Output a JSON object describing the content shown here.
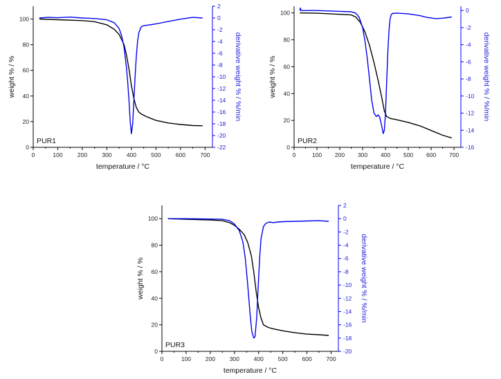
{
  "figure": {
    "colors": {
      "weight": "#000000",
      "derivative": "#0000ee",
      "axis": "#000000",
      "right_axis": "#0000ee"
    }
  },
  "chart_data": [
    {
      "type": "line",
      "panel_label": "PUR1",
      "xlabel": "temperature / °C",
      "ylabel_left": "weight % / %",
      "ylabel_right": "derivative weight % / %/min",
      "xlim": [
        0,
        730
      ],
      "ylim_left": [
        0,
        110
      ],
      "ylim_right": [
        -22,
        2
      ],
      "xticks": [
        0,
        100,
        200,
        300,
        400,
        500,
        600,
        700
      ],
      "yticks_left": [
        0,
        20,
        40,
        60,
        80,
        100
      ],
      "yticks_right": [
        2,
        0,
        -2,
        -4,
        -6,
        -8,
        -10,
        -12,
        -14,
        -16,
        -18,
        -20,
        -22
      ],
      "grid": false,
      "series": [
        {
          "axis": "left",
          "x": [
            25,
            100,
            200,
            250,
            300,
            330,
            350,
            370,
            380,
            390,
            400,
            410,
            420,
            430,
            440,
            460,
            480,
            500,
            550,
            600,
            650,
            690
          ],
          "values": [
            100,
            99.5,
            98.8,
            98,
            95.5,
            92,
            88,
            80,
            72,
            61,
            48,
            38,
            31,
            27.5,
            26,
            24,
            22.5,
            21,
            19,
            17.8,
            17,
            16.8
          ]
        },
        {
          "axis": "right",
          "x": [
            25,
            60,
            100,
            150,
            200,
            250,
            300,
            330,
            350,
            360,
            370,
            380,
            385,
            390,
            395,
            400,
            405,
            410,
            415,
            420,
            425,
            430,
            440,
            450,
            470,
            500,
            550,
            600,
            650,
            690
          ],
          "values": [
            0,
            0.1,
            0.05,
            0.15,
            0,
            -0.1,
            -0.3,
            -0.8,
            -1.8,
            -3,
            -5,
            -8.5,
            -11,
            -14,
            -17.5,
            -19.7,
            -18,
            -14,
            -10,
            -6.5,
            -4,
            -2.5,
            -1.5,
            -1.3,
            -1.2,
            -1,
            -0.6,
            -0.2,
            0.1,
            0
          ]
        }
      ]
    },
    {
      "type": "line",
      "panel_label": "PUR2",
      "xlabel": "temperature / °C",
      "ylabel_left": "weight % / %",
      "ylabel_right": "derivative weight % / %/min",
      "xlim": [
        0,
        730
      ],
      "ylim_left": [
        0,
        105
      ],
      "ylim_right": [
        -16,
        0.5
      ],
      "xticks": [
        0,
        100,
        200,
        300,
        400,
        500,
        600,
        700
      ],
      "yticks_left": [
        0,
        20,
        40,
        60,
        80,
        100
      ],
      "yticks_right": [
        0,
        -2,
        -4,
        -6,
        -8,
        -10,
        -12,
        -14,
        -16
      ],
      "grid": false,
      "series": [
        {
          "axis": "left",
          "x": [
            25,
            100,
            200,
            250,
            270,
            290,
            310,
            330,
            350,
            370,
            385,
            395,
            405,
            420,
            450,
            500,
            550,
            600,
            650,
            690
          ],
          "values": [
            100,
            99.8,
            99,
            98.5,
            97,
            93,
            86,
            76,
            63,
            48,
            36,
            27,
            23,
            21.5,
            20.5,
            18.5,
            16,
            12.5,
            9,
            7
          ]
        },
        {
          "axis": "right",
          "x": [
            25,
            28,
            30,
            60,
            100,
            150,
            200,
            250,
            270,
            285,
            300,
            310,
            320,
            330,
            340,
            350,
            360,
            368,
            375,
            382,
            390,
            395,
            400,
            405,
            410,
            415,
            420,
            425,
            430,
            450,
            500,
            550,
            580,
            620,
            650,
            690
          ],
          "values": [
            0,
            0.3,
            0,
            0,
            0,
            -0.05,
            -0.1,
            -0.15,
            -0.3,
            -0.8,
            -2,
            -3.5,
            -5.5,
            -8,
            -10.5,
            -12,
            -12.4,
            -12.2,
            -12.5,
            -13.3,
            -14.4,
            -14,
            -12,
            -8.5,
            -5,
            -2.5,
            -1,
            -0.5,
            -0.35,
            -0.3,
            -0.4,
            -0.6,
            -0.8,
            -0.95,
            -0.9,
            -0.75
          ]
        }
      ]
    },
    {
      "type": "line",
      "panel_label": "PUR3",
      "xlabel": "temperature / °C",
      "ylabel_left": "weight % / %",
      "ylabel_right": "derivative weight % / %/min",
      "xlim": [
        0,
        730
      ],
      "ylim_left": [
        0,
        110
      ],
      "ylim_right": [
        -20,
        2
      ],
      "xticks": [
        0,
        100,
        200,
        300,
        400,
        500,
        600,
        700
      ],
      "yticks_left": [
        0,
        20,
        40,
        60,
        80,
        100
      ],
      "yticks_right": [
        2,
        0,
        -2,
        -4,
        -6,
        -8,
        -10,
        -12,
        -14,
        -16,
        -18,
        -20
      ],
      "grid": false,
      "series": [
        {
          "axis": "left",
          "x": [
            25,
            100,
            200,
            250,
            280,
            300,
            320,
            340,
            355,
            370,
            380,
            390,
            400,
            410,
            420,
            440,
            460,
            500,
            550,
            600,
            650,
            690
          ],
          "values": [
            100,
            99.5,
            99,
            98.5,
            97,
            95,
            92,
            88,
            82,
            72,
            60,
            45,
            33,
            25,
            20,
            18,
            17,
            15.5,
            14,
            13,
            12.5,
            12
          ]
        },
        {
          "axis": "right",
          "x": [
            25,
            100,
            200,
            250,
            280,
            300,
            320,
            335,
            345,
            355,
            365,
            372,
            380,
            385,
            392,
            400,
            405,
            410,
            420,
            430,
            445,
            460,
            480,
            500,
            550,
            600,
            650,
            690
          ],
          "values": [
            0,
            0,
            -0.05,
            -0.1,
            -0.3,
            -0.8,
            -1.8,
            -3.5,
            -6,
            -10,
            -14.5,
            -17,
            -18,
            -17.8,
            -15,
            -9,
            -5.5,
            -3,
            -1.2,
            -0.7,
            -0.5,
            -0.6,
            -0.5,
            -0.45,
            -0.4,
            -0.35,
            -0.3,
            -0.4
          ]
        }
      ]
    }
  ]
}
